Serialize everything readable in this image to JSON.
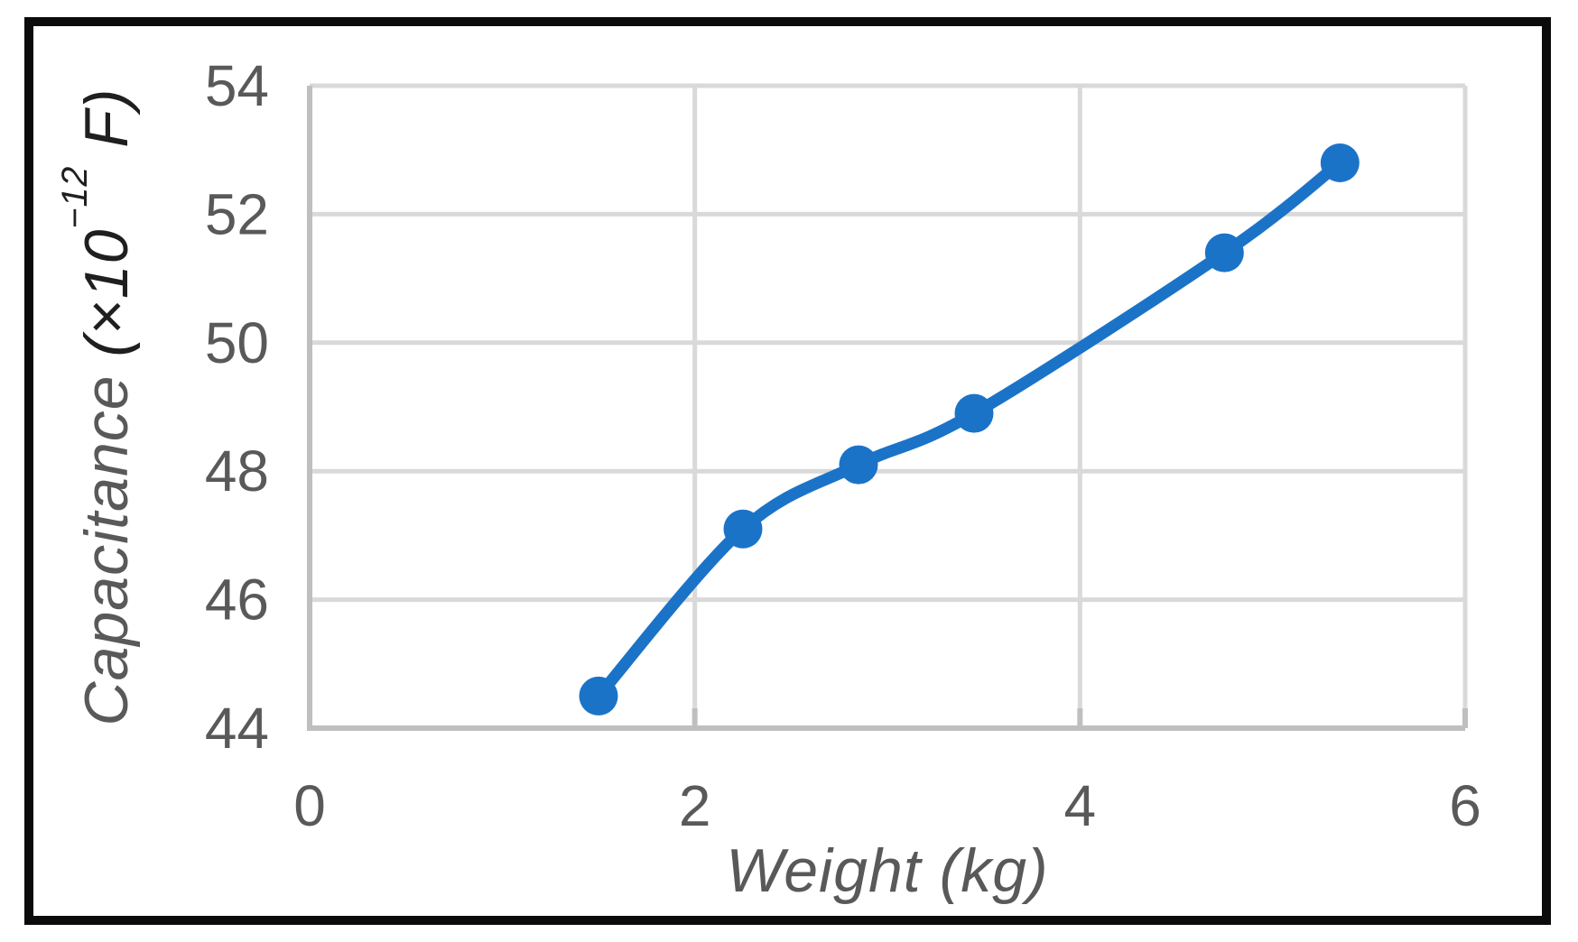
{
  "frame": {
    "border_color": "#0b0b0b"
  },
  "chart_data": {
    "type": "line",
    "title": "",
    "xlabel": "Weight (kg)",
    "ylabel": "Capacitance (×10⁻¹² F)",
    "ylabel_parts": {
      "name": "Capacitance",
      "unit_prefix": " (×10",
      "unit_exponent": "−12",
      "unit_suffix": " F)"
    },
    "x": [
      1.5,
      2.25,
      2.85,
      3.45,
      4.75,
      5.35
    ],
    "series": [
      {
        "name": "Capacitance",
        "values": [
          44.5,
          47.1,
          48.1,
          48.9,
          51.4,
          52.8
        ],
        "color": "#1B73C8",
        "marker": "circle",
        "smooth": true
      }
    ],
    "xlim": [
      0,
      6
    ],
    "ylim": [
      44,
      54
    ],
    "xticks": [
      0,
      2,
      4,
      6
    ],
    "yticks": [
      44,
      46,
      48,
      50,
      52,
      54
    ],
    "grid": true,
    "legend": "none",
    "colors": {
      "line": "#1B73C8",
      "grid": "#D9D9D9",
      "axis": "#BFBFBF",
      "tick_text": "#595959",
      "axis_title": "#595959",
      "unit_text": "#1f1f1f",
      "frame": "#0b0b0b",
      "background": "#ffffff"
    }
  }
}
